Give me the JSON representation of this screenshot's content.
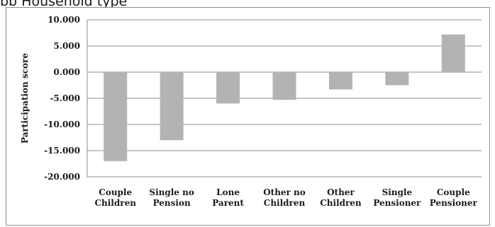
{
  "caption": "bb Household type",
  "chart_data": {
    "type": "bar",
    "title": "",
    "xlabel": "",
    "ylabel": "Participation score",
    "ylim": [
      -20,
      10
    ],
    "yticks": [
      10,
      5,
      0,
      -5,
      -10,
      -15,
      -20
    ],
    "ytick_labels": [
      "10.000",
      "5.000",
      "0.000",
      "-5.000",
      "-10.000",
      "-15.000",
      "-20.000"
    ],
    "grid": true,
    "bar_color": "#b3b3b3",
    "categories": [
      [
        "Couple",
        "Children"
      ],
      [
        "Single no",
        "Pension"
      ],
      [
        "Lone",
        "Parent"
      ],
      [
        "Other no",
        "Children"
      ],
      [
        "Other",
        "Children"
      ],
      [
        "Single",
        "Pensioner"
      ],
      [
        "Couple",
        "Pensioner"
      ]
    ],
    "values": [
      -17.0,
      -13.0,
      -6.0,
      -5.3,
      -3.3,
      -2.5,
      7.2
    ]
  }
}
